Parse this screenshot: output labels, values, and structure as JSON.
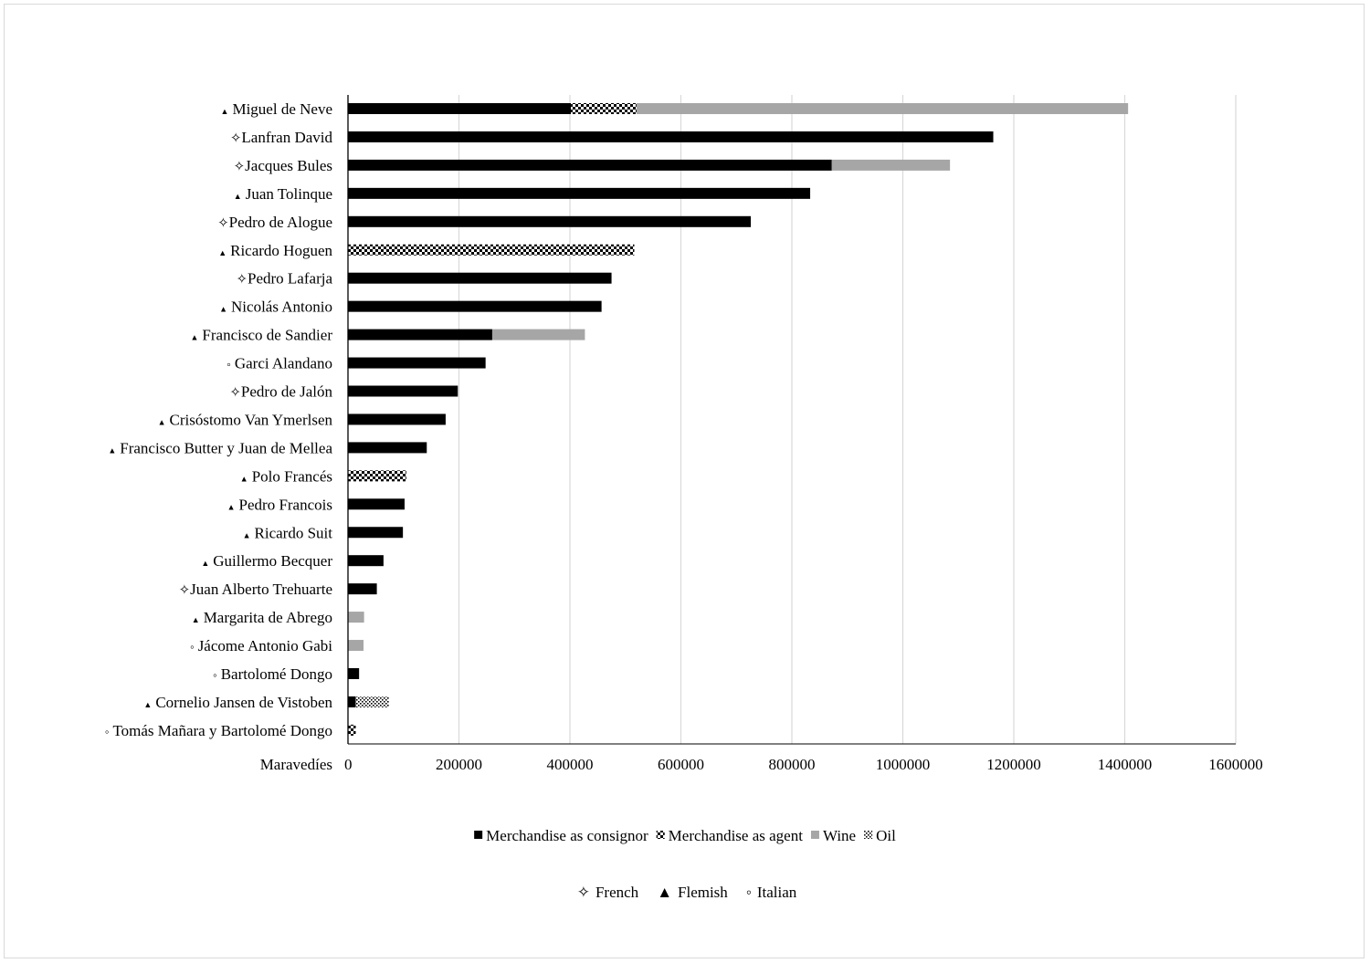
{
  "chart_data": {
    "type": "bar",
    "orientation": "horizontal",
    "stacked": true,
    "xlabel": "Maravedíes",
    "xlim": [
      0,
      1600000
    ],
    "xticks": [
      "0",
      "200000",
      "400000",
      "600000",
      "800000",
      "1000000",
      "1200000",
      "1400000",
      "1600000"
    ],
    "grid": "vertical",
    "legend_position": "bottom",
    "categories": [
      {
        "name": "Miguel de Neve",
        "group": "Flemish"
      },
      {
        "name": "Lanfran David",
        "group": "French"
      },
      {
        "name": "Jacques Bules",
        "group": "French"
      },
      {
        "name": "Juan Tolinque",
        "group": "Flemish"
      },
      {
        "name": "Pedro de Alogue",
        "group": "French"
      },
      {
        "name": "Ricardo Hoguen",
        "group": "Flemish"
      },
      {
        "name": "Pedro Lafarja",
        "group": "French"
      },
      {
        "name": "Nicolás Antonio",
        "group": "Flemish"
      },
      {
        "name": "Francisco de Sandier",
        "group": "Flemish"
      },
      {
        "name": "Garci Alandano",
        "group": "Italian"
      },
      {
        "name": "Pedro de Jalón",
        "group": "French"
      },
      {
        "name": "Crisóstomo Van Ymerlsen",
        "group": "Flemish"
      },
      {
        "name": "Francisco Butter y Juan de Mellea",
        "group": "Flemish"
      },
      {
        "name": "Polo Francés",
        "group": "Flemish"
      },
      {
        "name": "Pedro Francois",
        "group": "Flemish"
      },
      {
        "name": "Ricardo Suit",
        "group": "Flemish"
      },
      {
        "name": "Guillermo Becquer",
        "group": "Flemish"
      },
      {
        "name": "Juan Alberto Trehuarte",
        "group": "French"
      },
      {
        "name": "Margarita de Abrego",
        "group": "Flemish"
      },
      {
        "name": "Jácome Antonio Gabi",
        "group": "Italian"
      },
      {
        "name": "Bartolomé Dongo",
        "group": "Italian"
      },
      {
        "name": "Cornelio Jansen de Vistoben",
        "group": "Flemish"
      },
      {
        "name": "Tomás Mañara y Bartolomé Dongo",
        "group": "Italian"
      }
    ],
    "series": [
      {
        "name": "Merchandise as consignor",
        "pattern": "solid",
        "color": "#000000",
        "values": [
          402000,
          1163000,
          872000,
          833000,
          726000,
          0,
          475000,
          457000,
          260000,
          248000,
          198000,
          176000,
          142000,
          0,
          102000,
          99000,
          64000,
          52000,
          0,
          0,
          20000,
          14000,
          0
        ]
      },
      {
        "name": "Merchandise as agent",
        "pattern": "checker",
        "color": "#000000",
        "values": [
          118000,
          0,
          0,
          0,
          0,
          516000,
          0,
          0,
          0,
          0,
          0,
          0,
          0,
          105000,
          0,
          0,
          0,
          0,
          0,
          0,
          0,
          0,
          14000
        ]
      },
      {
        "name": "Wine",
        "pattern": "solid",
        "color": "#a6a6a6",
        "values": [
          886000,
          0,
          213000,
          0,
          0,
          0,
          0,
          0,
          167000,
          0,
          0,
          0,
          0,
          0,
          0,
          0,
          0,
          0,
          29000,
          28000,
          0,
          0,
          0
        ]
      },
      {
        "name": "Oil",
        "pattern": "dots",
        "color": "#000000",
        "values": [
          0,
          0,
          0,
          0,
          0,
          0,
          0,
          0,
          0,
          0,
          0,
          0,
          0,
          0,
          0,
          0,
          0,
          0,
          0,
          0,
          0,
          60000,
          0
        ]
      }
    ],
    "groups": [
      {
        "name": "French",
        "marker": "✧"
      },
      {
        "name": "Flemish",
        "marker": "▲"
      },
      {
        "name": "Italian",
        "marker": "◦"
      }
    ]
  }
}
